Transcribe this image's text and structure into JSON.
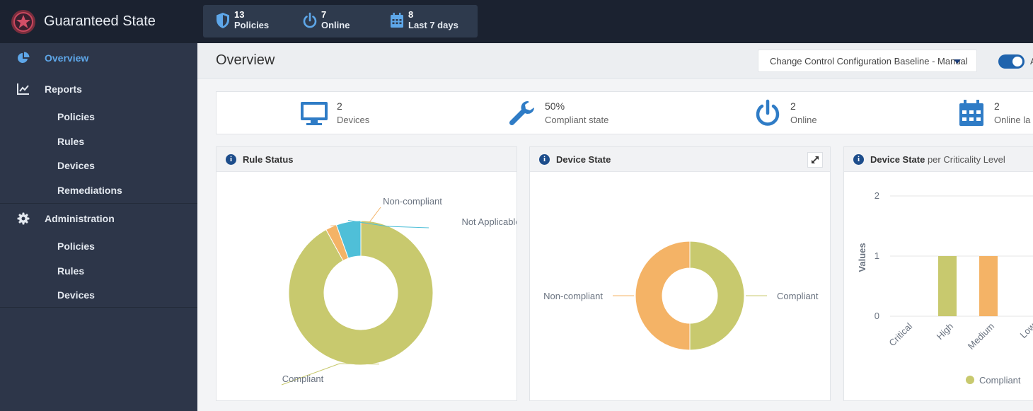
{
  "app": {
    "title": "Guaranteed State"
  },
  "topbar": {
    "stats": [
      {
        "icon": "shield-icon",
        "value": "13",
        "label": "Policies"
      },
      {
        "icon": "power-icon",
        "value": "7",
        "label": "Online"
      },
      {
        "icon": "calendar-icon",
        "value": "8",
        "label": "Last 7 days"
      }
    ]
  },
  "sidebar": {
    "overview": "Overview",
    "reports": {
      "label": "Reports",
      "items": [
        "Policies",
        "Rules",
        "Devices",
        "Remediations"
      ]
    },
    "administration": {
      "label": "Administration",
      "items": [
        "Policies",
        "Rules",
        "Devices"
      ]
    }
  },
  "header": {
    "title": "Overview",
    "baseline_select": "Change Control Configuration Baseline - Manual",
    "toggle_label": "A",
    "toggle_on": true
  },
  "summary": [
    {
      "icon": "monitor-icon",
      "value": "2",
      "label": "Devices"
    },
    {
      "icon": "wrench-icon",
      "value": "50%",
      "label": "Compliant state"
    },
    {
      "icon": "power-icon",
      "value": "2",
      "label": "Online"
    },
    {
      "icon": "calendar-icon",
      "value": "2",
      "label": "Online la"
    }
  ],
  "colors": {
    "compliant": "#c8c96e",
    "non_compliant": "#f4b366",
    "not_applicable": "#4fbfd8",
    "accent": "#5ea7e9",
    "sidebar_bg": "#2d3649",
    "topbar_bg": "#1b2230"
  },
  "cards": {
    "rule_status": {
      "title": "Rule Status"
    },
    "device_state": {
      "title": "Device State"
    },
    "criticality": {
      "title": "Device State",
      "subtitle": "per Criticality Level"
    }
  },
  "chart_data": [
    {
      "type": "pie",
      "title": "Rule Status",
      "categories": [
        "Compliant",
        "Non-compliant",
        "Not Applicable"
      ],
      "values": [
        92,
        2.5,
        5.5
      ]
    },
    {
      "type": "pie",
      "title": "Device State",
      "categories": [
        "Compliant",
        "Non-compliant"
      ],
      "values": [
        1,
        1
      ]
    },
    {
      "type": "bar",
      "title": "Device State per Criticality Level",
      "categories": [
        "Critical",
        "High",
        "Medium",
        "Low"
      ],
      "series": [
        {
          "name": "Compliant",
          "values": [
            0,
            1,
            0,
            0
          ]
        },
        {
          "values": [
            0,
            0,
            1,
            0
          ]
        }
      ],
      "ylabel": "Values",
      "ylim": [
        0,
        2
      ],
      "yticks": [
        "0",
        "1",
        "2"
      ],
      "legend": "bottom"
    }
  ]
}
